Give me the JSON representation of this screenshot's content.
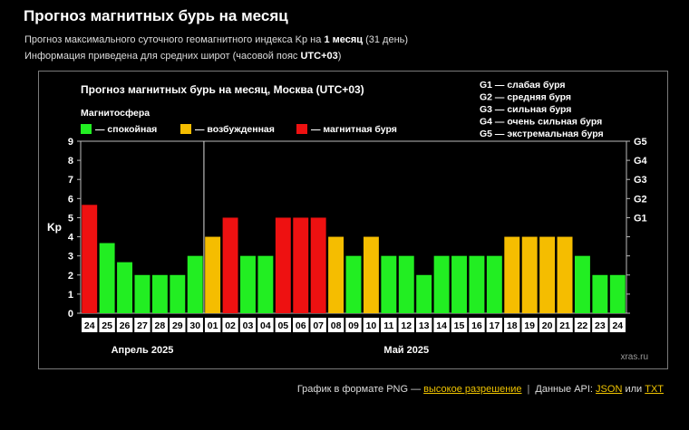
{
  "page": {
    "title": "Прогноз магнитных бурь на месяц",
    "desc1_pre": "Прогноз максимального суточного геомагнитного индекса Kp на ",
    "desc1_bold": "1 месяц",
    "desc1_post": " (31 день)",
    "desc2_pre": "Информация приведена для средних широт (часовой пояс ",
    "desc2_bold": "UTC+03",
    "desc2_post": ")"
  },
  "footer": {
    "png_label": "График в формате PNG — ",
    "png_link": "высокое разрешение",
    "api_label": "Данные API: ",
    "json_link": "JSON",
    "or_label": " или ",
    "txt_link": "TXT"
  },
  "colors": {
    "calm": "#22ee22",
    "excited": "#f5bd00",
    "storm": "#ee1111",
    "background": "#000000",
    "link": "#f0c400"
  },
  "chart_data": {
    "type": "bar",
    "title": "Прогноз магнитных бурь на месяц, Москва (UTC+03)",
    "legend_title": "Магнитосфера",
    "legend": [
      {
        "key": "calm",
        "label": "— спокойная",
        "color": "#22ee22"
      },
      {
        "key": "excited",
        "label": "— возбужденная",
        "color": "#f5bd00"
      },
      {
        "key": "storm",
        "label": "— магнитная буря",
        "color": "#ee1111"
      }
    ],
    "storm_scale": [
      "G1 — слабая буря",
      "G2 — средняя буря",
      "G3 — сильная буря",
      "G4 — очень сильная буря",
      "G5 — экстремальная буря"
    ],
    "ylabel": "Kp",
    "ylim": [
      0,
      9
    ],
    "yticks": [
      "0",
      "1",
      "2",
      "3",
      "4",
      "5",
      "6",
      "7",
      "8",
      "9"
    ],
    "right_ticks": [
      {
        "label": "G1",
        "value": 5
      },
      {
        "label": "G2",
        "value": 6
      },
      {
        "label": "G3",
        "value": 7
      },
      {
        "label": "G4",
        "value": 8
      },
      {
        "label": "G5",
        "value": 9
      }
    ],
    "categories": [
      "24",
      "25",
      "26",
      "27",
      "28",
      "29",
      "30",
      "01",
      "02",
      "03",
      "04",
      "05",
      "06",
      "07",
      "08",
      "09",
      "10",
      "11",
      "12",
      "13",
      "14",
      "15",
      "16",
      "17",
      "18",
      "19",
      "20",
      "21",
      "22",
      "23",
      "24"
    ],
    "values": [
      5.67,
      3.67,
      2.67,
      2,
      2,
      2,
      3,
      4,
      5,
      3,
      3,
      5,
      5,
      5,
      4,
      3,
      4,
      3,
      3,
      2,
      3,
      3,
      3,
      3,
      4,
      4,
      4,
      4,
      3,
      2,
      2
    ],
    "month_labels": [
      {
        "label": "Апрель 2025",
        "center_index": 3
      },
      {
        "label": "Май 2025",
        "center_index": 18
      }
    ],
    "month_divider_index": 7,
    "watermark": "xras.ru",
    "grid": true
  }
}
